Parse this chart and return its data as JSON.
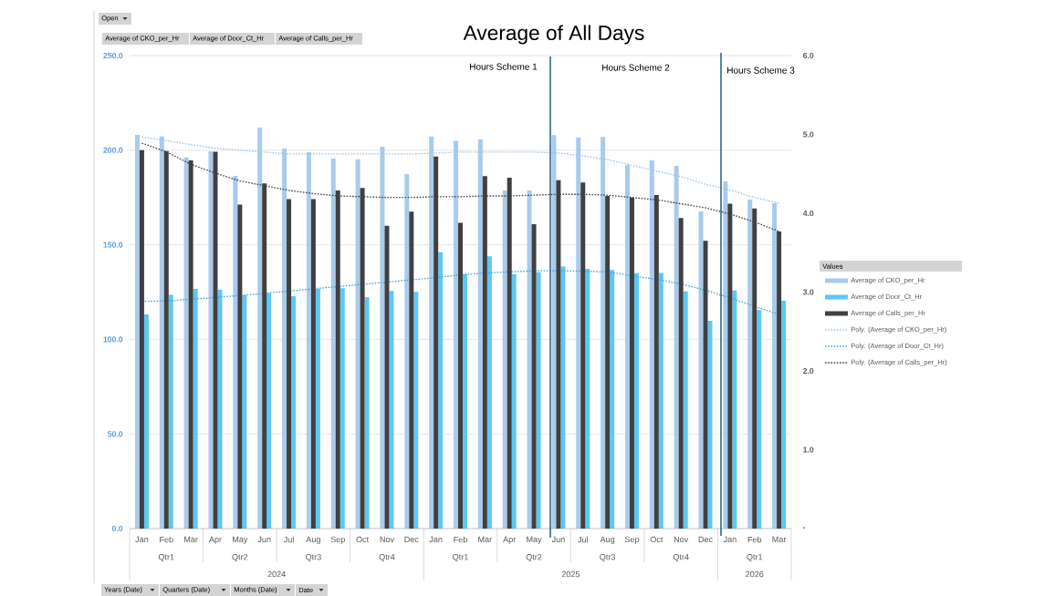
{
  "chart_data": {
    "type": "bar",
    "title": "Average of All Days",
    "categories": [
      "Jan",
      "Feb",
      "Mar",
      "Apr",
      "May",
      "Jun",
      "Jul",
      "Aug",
      "Sep",
      "Oct",
      "Nov",
      "Dec",
      "Jan",
      "Feb",
      "Mar",
      "Apr",
      "May",
      "Jun",
      "Jul",
      "Aug",
      "Sep",
      "Oct",
      "Nov",
      "Dec",
      "Jan",
      "Feb",
      "Mar"
    ],
    "series": [
      {
        "name": "Average of CKO_per_Hr",
        "type": "bar",
        "color": "#a9cbec",
        "values": [
          208.1,
          207.3,
          196.2,
          199.4,
          186.4,
          212.0,
          200.9,
          198.9,
          195.6,
          195.2,
          201.8,
          187.4,
          207.3,
          205.0,
          205.7,
          178.7,
          178.7,
          208.0,
          206.6,
          207.0,
          192.2,
          194.6,
          191.7,
          167.6,
          183.5,
          173.9,
          172.0
        ]
      },
      {
        "name": "Average of Door_Ct_Hr",
        "type": "bar",
        "color": "#5bc8f5",
        "values": [
          113.2,
          123.6,
          126.7,
          126.2,
          123.3,
          124.3,
          122.8,
          126.7,
          127.0,
          122.4,
          125.6,
          125.1,
          146.1,
          134.5,
          143.9,
          134.5,
          135.5,
          138.6,
          137.3,
          136.7,
          135.0,
          135.1,
          125.4,
          109.8,
          125.8,
          115.5,
          120.4
        ]
      },
      {
        "name": "Average of Calls_per_Hr",
        "type": "bar",
        "axis": "y2",
        "color": "#404040",
        "values": [
          4.8,
          4.79,
          4.67,
          4.78,
          4.11,
          4.38,
          4.18,
          4.18,
          4.29,
          4.32,
          3.84,
          4.02,
          4.72,
          3.88,
          4.47,
          4.45,
          3.86,
          4.42,
          4.39,
          4.22,
          4.2,
          4.23,
          3.94,
          3.65,
          4.12,
          4.06,
          3.77
        ]
      },
      {
        "name": "Poly. (Average of CKO_per_Hr)",
        "type": "line",
        "line_style": "dotted",
        "color": "#9dc3e6",
        "values": [
          207,
          205,
          203,
          201,
          200,
          199,
          198,
          198,
          198,
          198,
          198,
          198,
          198.5,
          199,
          199,
          199,
          199,
          198.5,
          197,
          195,
          192,
          189,
          186,
          182,
          179,
          175,
          172
        ]
      },
      {
        "name": "Poly. (Average of Door_Ct_Hr)",
        "type": "line",
        "line_style": "dotted",
        "color": "#3fa4d6",
        "values": [
          120.1,
          120.3,
          121.2,
          122.2,
          123.2,
          124.3,
          125.5,
          126.7,
          127.9,
          129.1,
          130.3,
          131.5,
          132.6,
          134.1,
          135.0,
          135.7,
          136.2,
          136.3,
          136.0,
          135.7,
          133.6,
          131.7,
          129.3,
          126.0,
          122.0,
          117.5,
          113.2
        ]
      },
      {
        "name": "Poly. (Average of Calls_per_Hr)",
        "type": "line",
        "line_style": "dotted",
        "axis": "y2",
        "color": "#404040",
        "values": [
          4.89,
          4.78,
          4.62,
          4.51,
          4.41,
          4.35,
          4.29,
          4.25,
          4.22,
          4.21,
          4.2,
          4.2,
          4.21,
          4.21,
          4.22,
          4.22,
          4.23,
          4.24,
          4.24,
          4.23,
          4.2,
          4.17,
          4.12,
          4.07,
          3.99,
          3.89,
          3.77
        ]
      }
    ],
    "ylim": [
      0,
      250
    ],
    "yticks": [
      {
        "value": 0,
        "label": "0.0"
      },
      {
        "value": 50,
        "label": "50.0"
      },
      {
        "value": 100,
        "label": "100.0"
      },
      {
        "value": 150,
        "label": "150.0"
      },
      {
        "value": 200,
        "label": "200.0"
      },
      {
        "value": 250,
        "label": "250.0"
      }
    ],
    "y2lim": [
      0,
      6
    ],
    "y2ticks": [
      {
        "value": 0,
        "label": "-"
      },
      {
        "value": 1,
        "label": "1.0"
      },
      {
        "value": 2,
        "label": "2.0"
      },
      {
        "value": 3,
        "label": "3.0"
      },
      {
        "value": 4,
        "label": "4.0"
      },
      {
        "value": 5,
        "label": "5.0"
      },
      {
        "value": 6,
        "label": "6.0"
      }
    ],
    "grid": "y",
    "legend": "right",
    "legend_title": "Values",
    "annotations": [
      "Hours Scheme 1",
      "Hours Scheme 2",
      "Hours Scheme 3",
      "Qtr1",
      "Qtr2",
      "Qtr3",
      "Qtr4",
      "Qtr1",
      "Qtr2",
      "Qtr3",
      "Qtr4",
      "Qtr1",
      "2024",
      "2025",
      "2026",
      "Open",
      "Average of CKO_per_Hr",
      "Average of Door_Ct_Hr",
      "Average of Calls_per_Hr",
      "Years (Date)",
      "Quarters (Date)",
      "Months (Date)",
      "Date"
    ]
  }
}
